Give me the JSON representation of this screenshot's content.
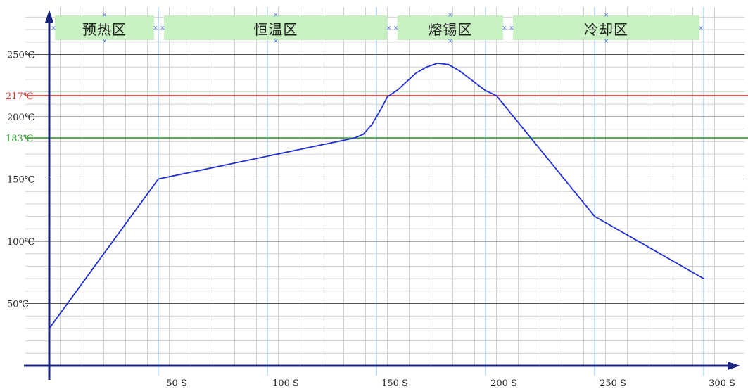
{
  "chart_data": {
    "type": "line",
    "title": "",
    "xlabel": "",
    "ylabel": "",
    "xlim": [
      0,
      310
    ],
    "ylim": [
      0,
      260
    ],
    "x_ticks": [
      {
        "value": 50,
        "label": "50 S"
      },
      {
        "value": 100,
        "label": "100 S"
      },
      {
        "value": 150,
        "label": "150 S"
      },
      {
        "value": 200,
        "label": "200 S"
      },
      {
        "value": 250,
        "label": "250 S"
      },
      {
        "value": 300,
        "label": "300 S"
      }
    ],
    "y_ticks": [
      {
        "value": 50,
        "label": "50℃"
      },
      {
        "value": 100,
        "label": "100℃"
      },
      {
        "value": 150,
        "label": "150℃"
      },
      {
        "value": 200,
        "label": "200℃"
      },
      {
        "value": 250,
        "label": "250℃"
      }
    ],
    "reference_lines": [
      {
        "value": 217,
        "label": "217℃",
        "color": "#e53935"
      },
      {
        "value": 183,
        "label": "183℃",
        "color": "#2e9e2e"
      }
    ],
    "zones": [
      {
        "label": "预热区",
        "x_start": 0,
        "x_end": 50
      },
      {
        "label": "恒温区",
        "x_start": 50,
        "x_end": 157
      },
      {
        "label": "熔锡区",
        "x_start": 157,
        "x_end": 210
      },
      {
        "label": "冷却区",
        "x_start": 210,
        "x_end": 300
      }
    ],
    "grid": true,
    "series": [
      {
        "color": "#1f2fd6",
        "points": [
          [
            0,
            30
          ],
          [
            50,
            150
          ],
          [
            140,
            183
          ],
          [
            144,
            186
          ],
          [
            148,
            194
          ],
          [
            152,
            206
          ],
          [
            155,
            216
          ],
          [
            160,
            222
          ],
          [
            168,
            235
          ],
          [
            173,
            240
          ],
          [
            178,
            243
          ],
          [
            183,
            242
          ],
          [
            188,
            237
          ],
          [
            194,
            229
          ],
          [
            200,
            221
          ],
          [
            205,
            217
          ],
          [
            250,
            120
          ],
          [
            300,
            70
          ]
        ]
      }
    ],
    "colors": {
      "axis": "#1a237e",
      "grid": "#d0d0d0",
      "major_v": "#9cc9f0",
      "major_h": "#555555",
      "zone_fill": "#c8f0c2",
      "marker": "#4a6ee0"
    }
  }
}
